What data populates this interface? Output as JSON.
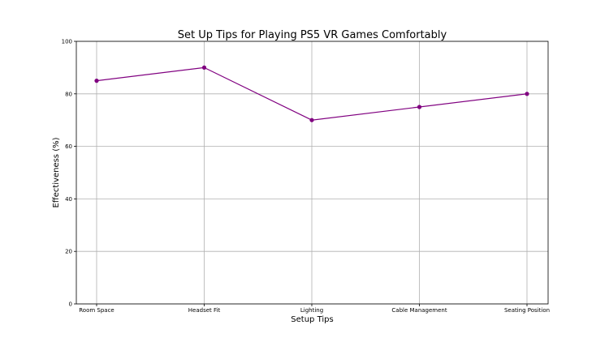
{
  "chart_data": {
    "type": "line",
    "title": "Set Up Tips for Playing PS5 VR Games Comfortably",
    "xlabel": "Setup Tips",
    "ylabel": "Effectiveness (%)",
    "categories": [
      "Room Space",
      "Headset Fit",
      "Lighting",
      "Cable Management",
      "Seating Position"
    ],
    "series": [
      {
        "values": [
          85,
          90,
          70,
          75,
          80
        ],
        "color": "#800080"
      }
    ],
    "ylim": [
      0,
      100
    ],
    "yticks": [
      "0",
      "20",
      "40",
      "60",
      "80",
      "100"
    ],
    "grid": true
  }
}
